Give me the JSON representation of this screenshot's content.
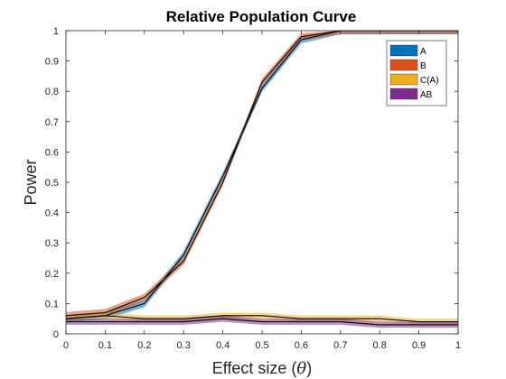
{
  "chart_data": {
    "type": "line",
    "title": "Relative Population Curve",
    "xlabel_main": "Effect size (",
    "xlabel_symbol": "θ",
    "xlabel_close": ")",
    "ylabel": "Power",
    "xlim": [
      0,
      1
    ],
    "ylim": [
      0,
      1
    ],
    "xticks": [
      0,
      0.1,
      0.2,
      0.3,
      0.4,
      0.5,
      0.6,
      0.7,
      0.8,
      0.9,
      1
    ],
    "yticks": [
      0,
      0.1,
      0.2,
      0.3,
      0.4,
      0.5,
      0.6,
      0.7,
      0.8,
      0.9,
      1
    ],
    "xtick_labels": [
      "0",
      "0.1",
      "0.2",
      "0.3",
      "0.4",
      "0.5",
      "0.6",
      "0.7",
      "0.8",
      "0.9",
      "1"
    ],
    "ytick_labels": [
      "0",
      "0.1",
      "0.2",
      "0.3",
      "0.4",
      "0.5",
      "0.6",
      "0.7",
      "0.8",
      "0.9",
      "1"
    ],
    "grid": false,
    "legend_position": "top-right",
    "x": [
      0,
      0.1,
      0.2,
      0.3,
      0.4,
      0.5,
      0.6,
      0.7,
      0.8,
      0.9,
      1
    ],
    "series": [
      {
        "name": "A",
        "color": "#0072BD",
        "values": [
          0.05,
          0.06,
          0.1,
          0.26,
          0.52,
          0.81,
          0.97,
          1.0,
          1.0,
          1.0,
          1.0
        ],
        "band": 0.012
      },
      {
        "name": "B",
        "color": "#D95319",
        "values": [
          0.06,
          0.07,
          0.12,
          0.24,
          0.5,
          0.83,
          0.98,
          1.0,
          1.0,
          1.0,
          1.0
        ],
        "band": 0.012
      },
      {
        "name": "C(A)",
        "color": "#EDB120",
        "values": [
          0.05,
          0.06,
          0.05,
          0.05,
          0.06,
          0.06,
          0.05,
          0.05,
          0.05,
          0.04,
          0.04
        ],
        "band": 0.01
      },
      {
        "name": "AB",
        "color": "#7E2F8E",
        "values": [
          0.04,
          0.04,
          0.04,
          0.04,
          0.05,
          0.04,
          0.04,
          0.04,
          0.03,
          0.03,
          0.03
        ],
        "band": 0.01
      }
    ]
  }
}
